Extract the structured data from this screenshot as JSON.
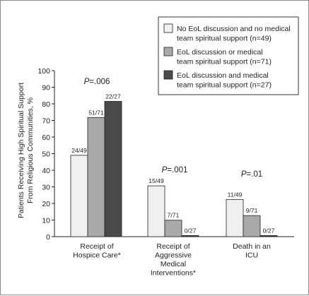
{
  "chart_data": {
    "type": "bar",
    "ylabel_lines": [
      "Patients Receiving High Spiritual Support",
      "From Religious Communities, %"
    ],
    "ylim": [
      0,
      100
    ],
    "yticks": [
      0,
      10,
      20,
      30,
      40,
      50,
      60,
      70,
      80,
      90,
      100
    ],
    "categories": [
      [
        "Receipt of",
        "Hospice Care*"
      ],
      [
        "Receipt of",
        "Aggressive",
        "Medical",
        "Interventions*"
      ],
      [
        "Death in an",
        "ICU"
      ]
    ],
    "p_values": [
      {
        "prefix": "P",
        "value": "=.006"
      },
      {
        "prefix": "P",
        "value": "=.001"
      },
      {
        "prefix": "P",
        "value": "=.01"
      }
    ],
    "series": [
      {
        "name_lines": [
          "No EoL discussion and no medical",
          "team spiritual support (n=49)"
        ],
        "color": "#f0f0f0",
        "values": [
          49,
          30.6,
          22.4
        ],
        "labels": [
          "24/49",
          "15/49",
          "11/49"
        ]
      },
      {
        "name_lines": [
          "EoL discussion or medical",
          "team spiritual support (n=71)"
        ],
        "color": "#a9a9a9",
        "values": [
          71.8,
          9.9,
          12.7
        ],
        "labels": [
          "51/71",
          "7/71",
          "9/71"
        ]
      },
      {
        "name_lines": [
          "EoL discussion and medical",
          "team spiritual support (n=27)"
        ],
        "color": "#4a4a4a",
        "values": [
          81.5,
          0,
          0
        ],
        "labels": [
          "22/27",
          "0/27",
          "0/27"
        ]
      }
    ],
    "legend_position": "top-right",
    "grid": false
  }
}
